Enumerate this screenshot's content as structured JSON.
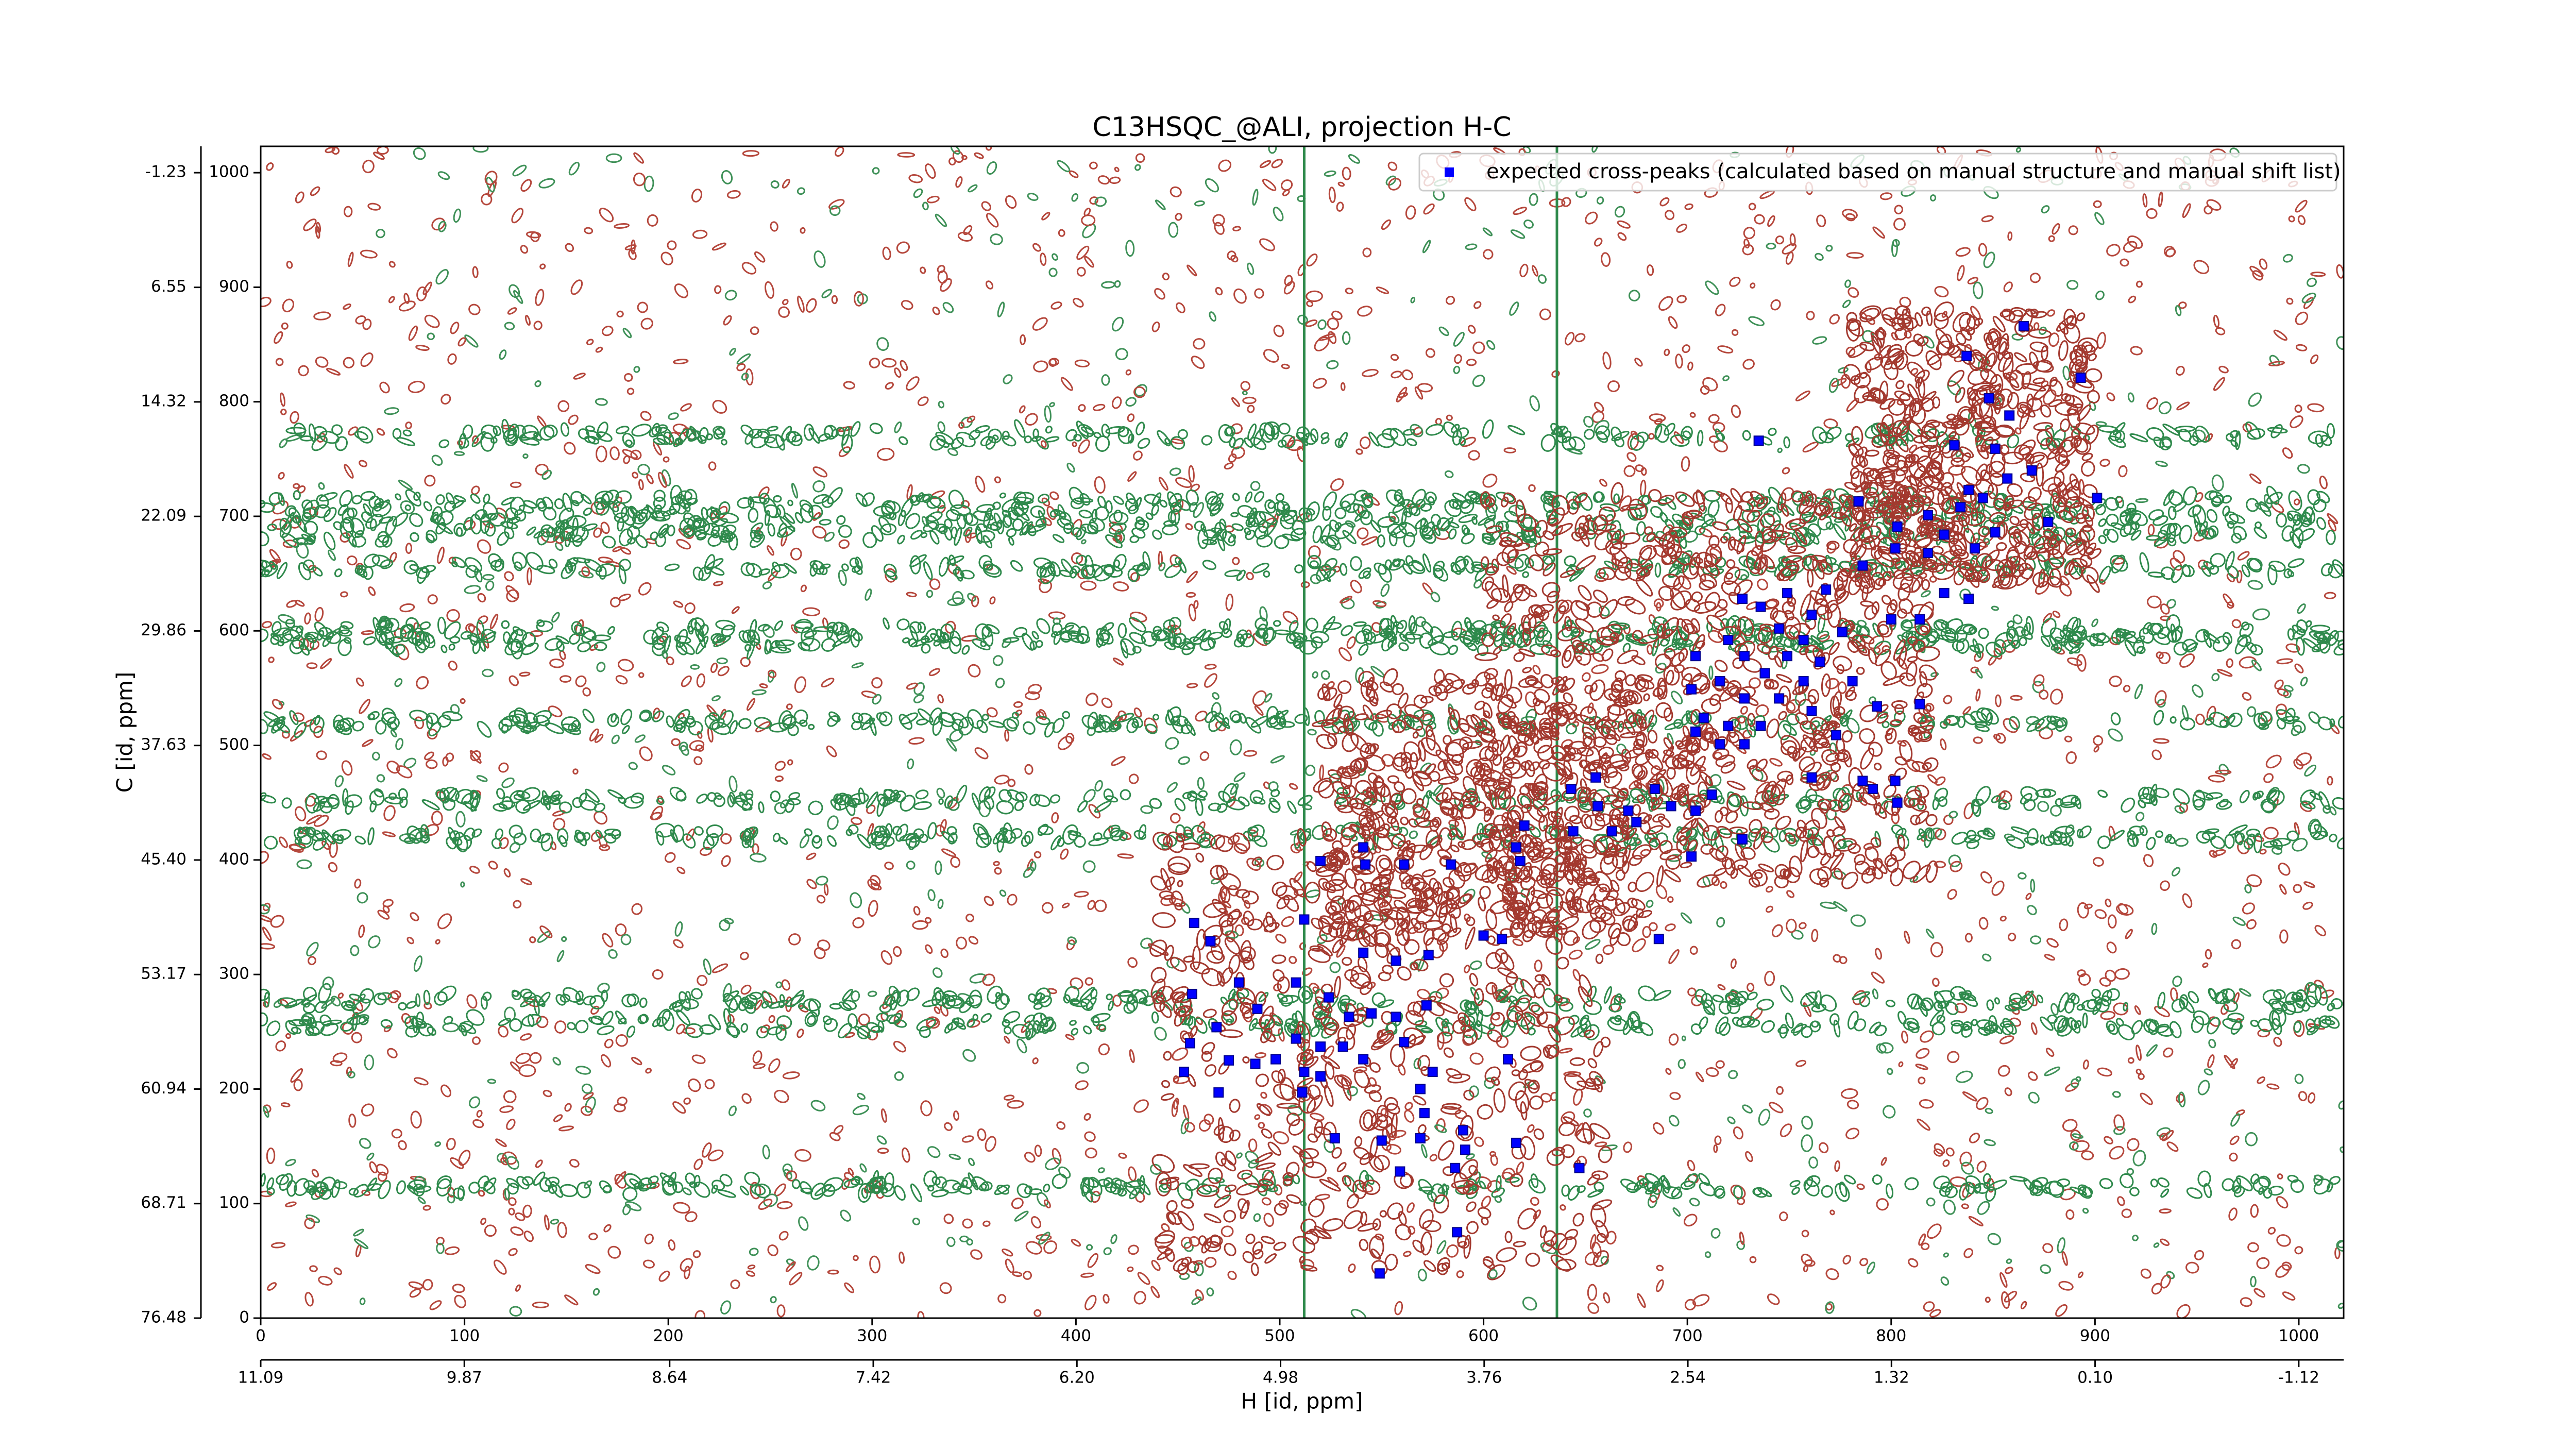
{
  "chart_data": {
    "type": "scatter",
    "title": "C13HSQC_@ALI, projection H-C",
    "xlabel": "H [id, ppm]",
    "ylabel": "C [id, ppm]",
    "xlim": [
      0,
      1022
    ],
    "ylim": [
      0,
      1023
    ],
    "xticks": [
      0,
      100,
      200,
      300,
      400,
      500,
      600,
      700,
      800,
      900,
      1000
    ],
    "yticks": [
      0,
      100,
      200,
      300,
      400,
      500,
      600,
      700,
      800,
      900,
      1000
    ],
    "x2lim": [
      11.09,
      -1.389
    ],
    "x2ticks": [
      11.09,
      9.87,
      8.64,
      7.42,
      {
        "value": 6.2,
        "label": "6.20"
      },
      4.98,
      3.76,
      2.54,
      1.32,
      {
        "value": 0.1,
        "label": "0.10"
      },
      -1.12
    ],
    "y2lim": [
      76.48,
      -3.017
    ],
    "y2ticks": [
      76.48,
      68.71,
      60.94,
      53.17,
      {
        "value": 45.4,
        "label": "45.40"
      },
      37.63,
      29.86,
      22.09,
      14.32,
      6.55,
      -1.23
    ],
    "legend": "upper right",
    "series": [
      {
        "name": "expected cross-peaks (calculated based on manual structure and manual shift list)",
        "color": "#0000ff",
        "x": [
          865,
          837,
          893,
          735,
          848,
          858,
          831,
          851,
          869,
          857,
          784,
          838,
          845,
          901,
          834,
          818,
          877,
          803,
          826,
          851,
          841,
          818,
          802,
          786,
          768,
          749,
          727,
          826,
          838,
          800,
          814,
          761,
          745,
          736,
          776,
          720,
          757,
          728,
          749,
          765,
          704,
          738,
          716,
          757,
          781,
          702,
          728,
          745,
          793,
          708,
          720,
          736,
          761,
          814,
          773,
          728,
          716,
          704,
          761,
          786,
          802,
          803,
          791,
          712,
          692,
          704,
          684,
          671,
          655,
          643,
          656,
          644,
          663,
          675,
          620,
          727,
          702,
          616,
          618,
          584,
          561,
          541,
          542,
          520,
          600,
          609,
          573,
          557,
          541,
          512,
          458,
          466,
          686,
          480,
          508,
          457,
          489,
          524,
          534,
          545,
          557,
          561,
          572,
          469,
          456,
          508,
          520,
          531,
          541,
          498,
          488,
          475,
          453,
          512,
          612,
          520,
          575,
          569,
          511,
          470,
          571,
          590,
          569,
          550,
          527,
          616,
          591,
          647,
          559,
          586,
          587,
          549
        ],
        "values": [
          866,
          840,
          821,
          766,
          803,
          788,
          762,
          759,
          740,
          733,
          713,
          723,
          716,
          716,
          708,
          701,
          695,
          691,
          684,
          686,
          672,
          668,
          672,
          657,
          636,
          633,
          628,
          633,
          628,
          610,
          610,
          614,
          602,
          621,
          599,
          592,
          592,
          578,
          578,
          573,
          578,
          563,
          556,
          556,
          556,
          549,
          541,
          541,
          534,
          524,
          517,
          517,
          530,
          536,
          509,
          501,
          501,
          512,
          472,
          469,
          469,
          450,
          462,
          457,
          447,
          443,
          462,
          443,
          472,
          462,
          447,
          425,
          425,
          433,
          430,
          418,
          403,
          411,
          399,
          396,
          396,
          411,
          396,
          399,
          334,
          331,
          317,
          312,
          319,
          348,
          345,
          329,
          331,
          293,
          293,
          283,
          270,
          280,
          263,
          266,
          263,
          241,
          273,
          254,
          240,
          244,
          237,
          237,
          226,
          226,
          222,
          225,
          215,
          215,
          226,
          211,
          215,
          200,
          197,
          197,
          179,
          164,
          157,
          155,
          157,
          153,
          147,
          131,
          128,
          131,
          75,
          39
        ]
      }
    ]
  }
}
